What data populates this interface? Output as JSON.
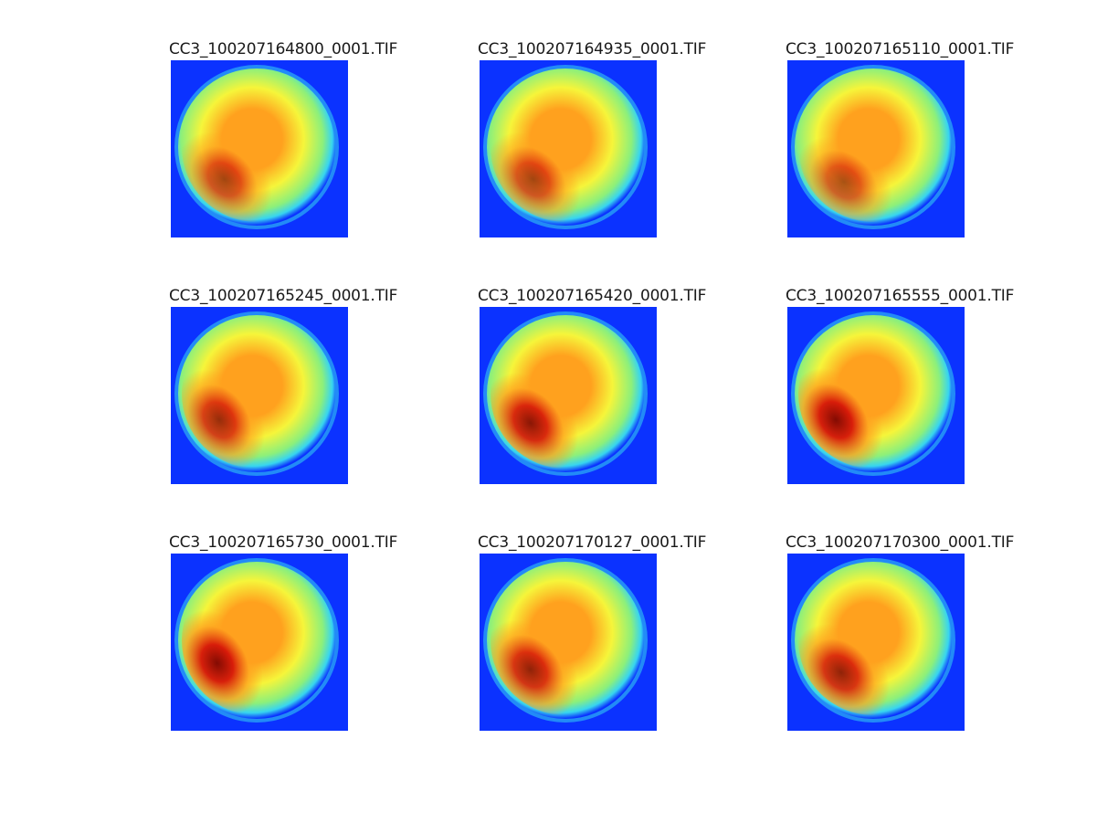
{
  "figure": {
    "colors": {
      "background": "#ffffff",
      "field_blue": "#0b32ff",
      "rim_cyan": "#37d5f0",
      "disk_green": "#8df07a",
      "disk_yellow": "#f6f53a",
      "disk_orange": "#ffa11e",
      "hot_red": "#d61408",
      "hot_darkred": "#7d0000"
    },
    "panels": [
      {
        "title": "CC3_100207164800_0001.TIF",
        "hot_intensity": 0.7,
        "hot_angle": 225
      },
      {
        "title": "CC3_100207164935_0001.TIF",
        "hot_intensity": 0.7,
        "hot_angle": 225
      },
      {
        "title": "CC3_100207165110_0001.TIF",
        "hot_intensity": 0.65,
        "hot_angle": 230
      },
      {
        "title": "CC3_100207165245_0001.TIF",
        "hot_intensity": 0.8,
        "hot_angle": 215
      },
      {
        "title": "CC3_100207165420_0001.TIF",
        "hot_intensity": 0.9,
        "hot_angle": 220
      },
      {
        "title": "CC3_100207165555_0001.TIF",
        "hot_intensity": 0.95,
        "hot_angle": 215
      },
      {
        "title": "CC3_100207165730_0001.TIF",
        "hot_intensity": 0.95,
        "hot_angle": 210
      },
      {
        "title": "CC3_100207170127_0001.TIF",
        "hot_intensity": 0.85,
        "hot_angle": 220
      },
      {
        "title": "CC3_100207170300_0001.TIF",
        "hot_intensity": 0.85,
        "hot_angle": 225
      }
    ]
  }
}
